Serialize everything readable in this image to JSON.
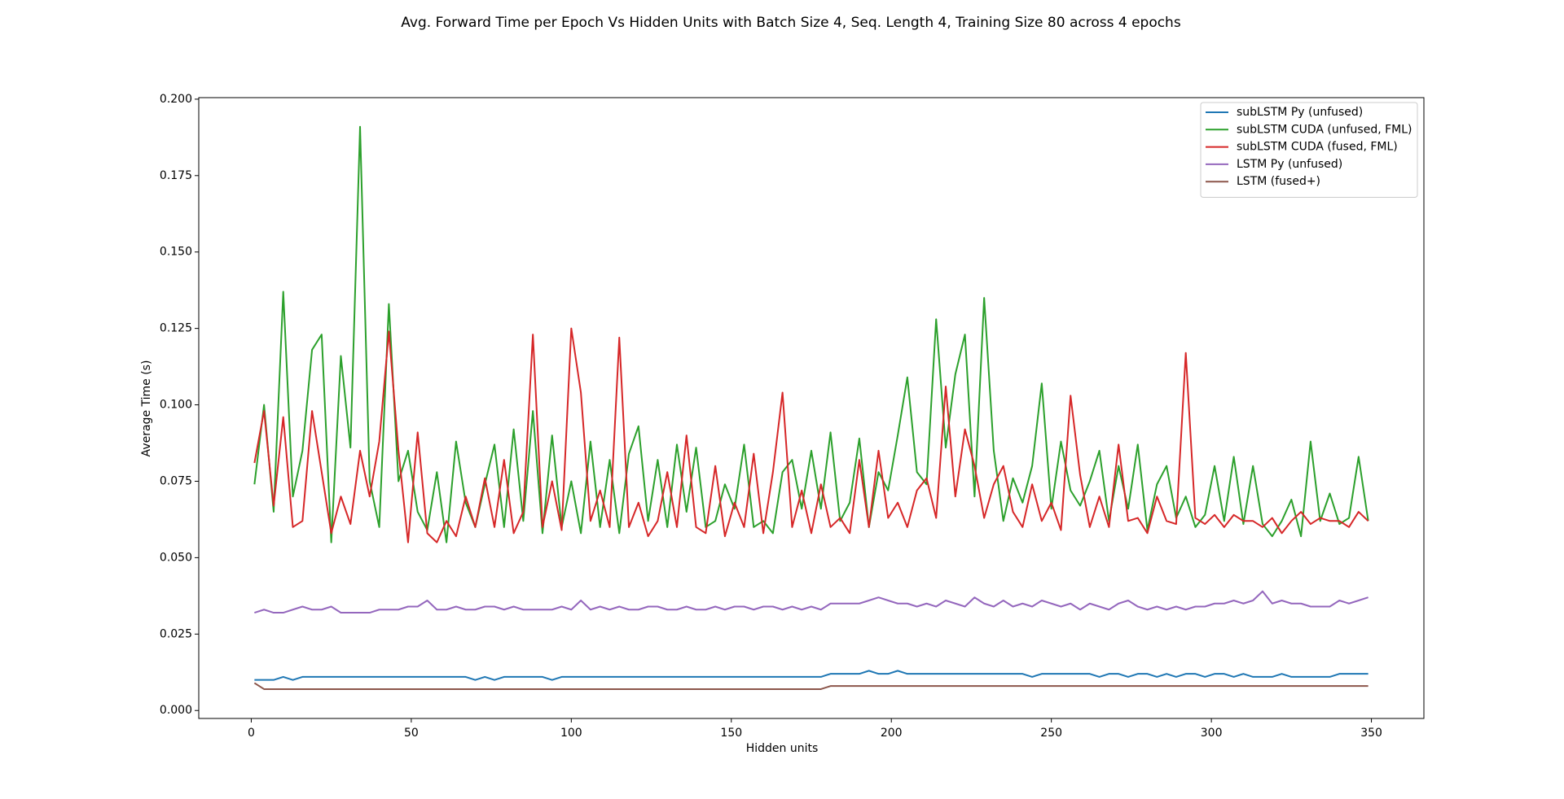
{
  "chart_data": {
    "type": "line",
    "title": "Avg. Forward Time per Epoch Vs Hidden Units with Batch Size 4, Seq. Length 4, Training Size 80 across 4 epochs",
    "xlabel": "Hidden units",
    "ylabel": "Average Time (s)",
    "xlim": [
      -16.4,
      366.4
    ],
    "ylim": [
      -0.0026,
      0.2005
    ],
    "xticks": [
      0,
      50,
      100,
      150,
      200,
      250,
      300,
      350
    ],
    "yticks": [
      {
        "value": 0,
        "label": "0.000"
      },
      {
        "value": 0.025,
        "label": "0.025"
      },
      {
        "value": 0.05,
        "label": "0.050"
      },
      {
        "value": 0.075,
        "label": "0.075"
      },
      {
        "value": 0.1,
        "label": "0.100"
      },
      {
        "value": 0.125,
        "label": "0.125"
      },
      {
        "value": 0.15,
        "label": "0.150"
      },
      {
        "value": 0.175,
        "label": "0.175"
      },
      {
        "value": 0.2,
        "label": "0.200"
      }
    ],
    "legend": "upper right",
    "x": [
      1,
      4,
      7,
      10,
      13,
      16,
      19,
      22,
      25,
      28,
      31,
      34,
      37,
      40,
      43,
      46,
      49,
      52,
      55,
      58,
      61,
      64,
      67,
      70,
      73,
      76,
      79,
      82,
      85,
      88,
      91,
      94,
      97,
      100,
      103,
      106,
      109,
      112,
      115,
      118,
      121,
      124,
      127,
      130,
      133,
      136,
      139,
      142,
      145,
      148,
      151,
      154,
      157,
      160,
      163,
      166,
      169,
      172,
      175,
      178,
      181,
      184,
      187,
      190,
      193,
      196,
      199,
      202,
      205,
      208,
      211,
      214,
      217,
      220,
      223,
      226,
      229,
      232,
      235,
      238,
      241,
      244,
      247,
      250,
      253,
      256,
      259,
      262,
      265,
      268,
      271,
      274,
      277,
      280,
      283,
      286,
      289,
      292,
      295,
      298,
      301,
      304,
      307,
      310,
      313,
      316,
      319,
      322,
      325,
      328,
      331,
      334,
      337,
      340,
      343,
      346,
      349
    ],
    "series": [
      {
        "name": "subLSTM Py (unfused)",
        "color": "#1f77b4",
        "values": [
          0.01,
          0.01,
          0.01,
          0.011,
          0.01,
          0.011,
          0.011,
          0.011,
          0.011,
          0.011,
          0.011,
          0.011,
          0.011,
          0.011,
          0.011,
          0.011,
          0.011,
          0.011,
          0.011,
          0.011,
          0.011,
          0.011,
          0.011,
          0.01,
          0.011,
          0.01,
          0.011,
          0.011,
          0.011,
          0.011,
          0.011,
          0.01,
          0.011,
          0.011,
          0.011,
          0.011,
          0.011,
          0.011,
          0.011,
          0.011,
          0.011,
          0.011,
          0.011,
          0.011,
          0.011,
          0.011,
          0.011,
          0.011,
          0.011,
          0.011,
          0.011,
          0.011,
          0.011,
          0.011,
          0.011,
          0.011,
          0.011,
          0.011,
          0.011,
          0.011,
          0.012,
          0.012,
          0.012,
          0.012,
          0.013,
          0.012,
          0.012,
          0.013,
          0.012,
          0.012,
          0.012,
          0.012,
          0.012,
          0.012,
          0.012,
          0.012,
          0.012,
          0.012,
          0.012,
          0.012,
          0.012,
          0.011,
          0.012,
          0.012,
          0.012,
          0.012,
          0.012,
          0.012,
          0.011,
          0.012,
          0.012,
          0.011,
          0.012,
          0.012,
          0.011,
          0.012,
          0.011,
          0.012,
          0.012,
          0.011,
          0.012,
          0.012,
          0.011,
          0.012,
          0.011,
          0.011,
          0.011,
          0.012,
          0.011,
          0.011,
          0.011,
          0.011,
          0.011,
          0.012,
          0.012,
          0.012,
          0.012
        ]
      },
      {
        "name": "subLSTM CUDA (unfused, FML)",
        "color": "#2ca02c",
        "values": [
          0.074,
          0.1,
          0.065,
          0.137,
          0.07,
          0.085,
          0.118,
          0.123,
          0.055,
          0.116,
          0.086,
          0.191,
          0.075,
          0.06,
          0.133,
          0.075,
          0.085,
          0.065,
          0.059,
          0.078,
          0.055,
          0.088,
          0.068,
          0.06,
          0.074,
          0.087,
          0.06,
          0.092,
          0.062,
          0.098,
          0.058,
          0.09,
          0.06,
          0.075,
          0.058,
          0.088,
          0.06,
          0.082,
          0.058,
          0.084,
          0.093,
          0.062,
          0.082,
          0.06,
          0.087,
          0.065,
          0.086,
          0.06,
          0.062,
          0.074,
          0.066,
          0.087,
          0.06,
          0.062,
          0.058,
          0.078,
          0.082,
          0.066,
          0.085,
          0.066,
          0.091,
          0.062,
          0.068,
          0.089,
          0.06,
          0.078,
          0.072,
          0.09,
          0.109,
          0.078,
          0.074,
          0.128,
          0.086,
          0.11,
          0.123,
          0.07,
          0.135,
          0.085,
          0.062,
          0.076,
          0.068,
          0.08,
          0.107,
          0.066,
          0.088,
          0.072,
          0.067,
          0.075,
          0.085,
          0.062,
          0.08,
          0.066,
          0.087,
          0.059,
          0.074,
          0.08,
          0.063,
          0.07,
          0.06,
          0.064,
          0.08,
          0.062,
          0.083,
          0.061,
          0.08,
          0.061,
          0.057,
          0.062,
          0.069,
          0.057,
          0.088,
          0.062,
          0.071,
          0.061,
          0.063,
          0.083,
          0.062
        ]
      },
      {
        "name": "subLSTM CUDA (fused, FML)",
        "color": "#d62728",
        "values": [
          0.081,
          0.098,
          0.067,
          0.096,
          0.06,
          0.062,
          0.098,
          0.078,
          0.058,
          0.07,
          0.061,
          0.085,
          0.07,
          0.088,
          0.124,
          0.085,
          0.055,
          0.091,
          0.058,
          0.055,
          0.062,
          0.057,
          0.07,
          0.06,
          0.076,
          0.06,
          0.082,
          0.058,
          0.065,
          0.123,
          0.06,
          0.075,
          0.059,
          0.125,
          0.104,
          0.062,
          0.072,
          0.06,
          0.122,
          0.06,
          0.068,
          0.057,
          0.062,
          0.078,
          0.06,
          0.09,
          0.06,
          0.058,
          0.08,
          0.057,
          0.068,
          0.06,
          0.084,
          0.058,
          0.078,
          0.104,
          0.06,
          0.072,
          0.058,
          0.074,
          0.06,
          0.063,
          0.058,
          0.082,
          0.06,
          0.085,
          0.063,
          0.068,
          0.06,
          0.072,
          0.076,
          0.063,
          0.106,
          0.07,
          0.092,
          0.08,
          0.063,
          0.074,
          0.08,
          0.065,
          0.06,
          0.074,
          0.062,
          0.068,
          0.059,
          0.103,
          0.077,
          0.06,
          0.07,
          0.06,
          0.087,
          0.062,
          0.063,
          0.058,
          0.07,
          0.062,
          0.061,
          0.117,
          0.063,
          0.061,
          0.064,
          0.06,
          0.064,
          0.062,
          0.062,
          0.06,
          0.063,
          0.058,
          0.062,
          0.065,
          0.061,
          0.063,
          0.062,
          0.062,
          0.06,
          0.065,
          0.062
        ]
      },
      {
        "name": "LSTM Py (unfused)",
        "color": "#9467bd",
        "values": [
          0.032,
          0.033,
          0.032,
          0.032,
          0.033,
          0.034,
          0.033,
          0.033,
          0.034,
          0.032,
          0.032,
          0.032,
          0.032,
          0.033,
          0.033,
          0.033,
          0.034,
          0.034,
          0.036,
          0.033,
          0.033,
          0.034,
          0.033,
          0.033,
          0.034,
          0.034,
          0.033,
          0.034,
          0.033,
          0.033,
          0.033,
          0.033,
          0.034,
          0.033,
          0.036,
          0.033,
          0.034,
          0.033,
          0.034,
          0.033,
          0.033,
          0.034,
          0.034,
          0.033,
          0.033,
          0.034,
          0.033,
          0.033,
          0.034,
          0.033,
          0.034,
          0.034,
          0.033,
          0.034,
          0.034,
          0.033,
          0.034,
          0.033,
          0.034,
          0.033,
          0.035,
          0.035,
          0.035,
          0.035,
          0.036,
          0.037,
          0.036,
          0.035,
          0.035,
          0.034,
          0.035,
          0.034,
          0.036,
          0.035,
          0.034,
          0.037,
          0.035,
          0.034,
          0.036,
          0.034,
          0.035,
          0.034,
          0.036,
          0.035,
          0.034,
          0.035,
          0.033,
          0.035,
          0.034,
          0.033,
          0.035,
          0.036,
          0.034,
          0.033,
          0.034,
          0.033,
          0.034,
          0.033,
          0.034,
          0.034,
          0.035,
          0.035,
          0.036,
          0.035,
          0.036,
          0.039,
          0.035,
          0.036,
          0.035,
          0.035,
          0.034,
          0.034,
          0.034,
          0.036,
          0.035,
          0.036,
          0.037
        ]
      },
      {
        "name": "LSTM (fused+)",
        "color": "#8c564b",
        "values": [
          0.009,
          0.007,
          0.007,
          0.007,
          0.007,
          0.007,
          0.007,
          0.007,
          0.007,
          0.007,
          0.007,
          0.007,
          0.007,
          0.007,
          0.007,
          0.007,
          0.007,
          0.007,
          0.007,
          0.007,
          0.007,
          0.007,
          0.007,
          0.007,
          0.007,
          0.007,
          0.007,
          0.007,
          0.007,
          0.007,
          0.007,
          0.007,
          0.007,
          0.007,
          0.007,
          0.007,
          0.007,
          0.007,
          0.007,
          0.007,
          0.007,
          0.007,
          0.007,
          0.007,
          0.007,
          0.007,
          0.007,
          0.007,
          0.007,
          0.007,
          0.007,
          0.007,
          0.007,
          0.007,
          0.007,
          0.007,
          0.007,
          0.007,
          0.007,
          0.007,
          0.008,
          0.008,
          0.008,
          0.008,
          0.008,
          0.008,
          0.008,
          0.008,
          0.008,
          0.008,
          0.008,
          0.008,
          0.008,
          0.008,
          0.008,
          0.008,
          0.008,
          0.008,
          0.008,
          0.008,
          0.008,
          0.008,
          0.008,
          0.008,
          0.008,
          0.008,
          0.008,
          0.008,
          0.008,
          0.008,
          0.008,
          0.008,
          0.008,
          0.008,
          0.008,
          0.008,
          0.008,
          0.008,
          0.008,
          0.008,
          0.008,
          0.008,
          0.008,
          0.008,
          0.008,
          0.008,
          0.008,
          0.008,
          0.008,
          0.008,
          0.008,
          0.008,
          0.008,
          0.008,
          0.008,
          0.008,
          0.008
        ]
      }
    ]
  }
}
